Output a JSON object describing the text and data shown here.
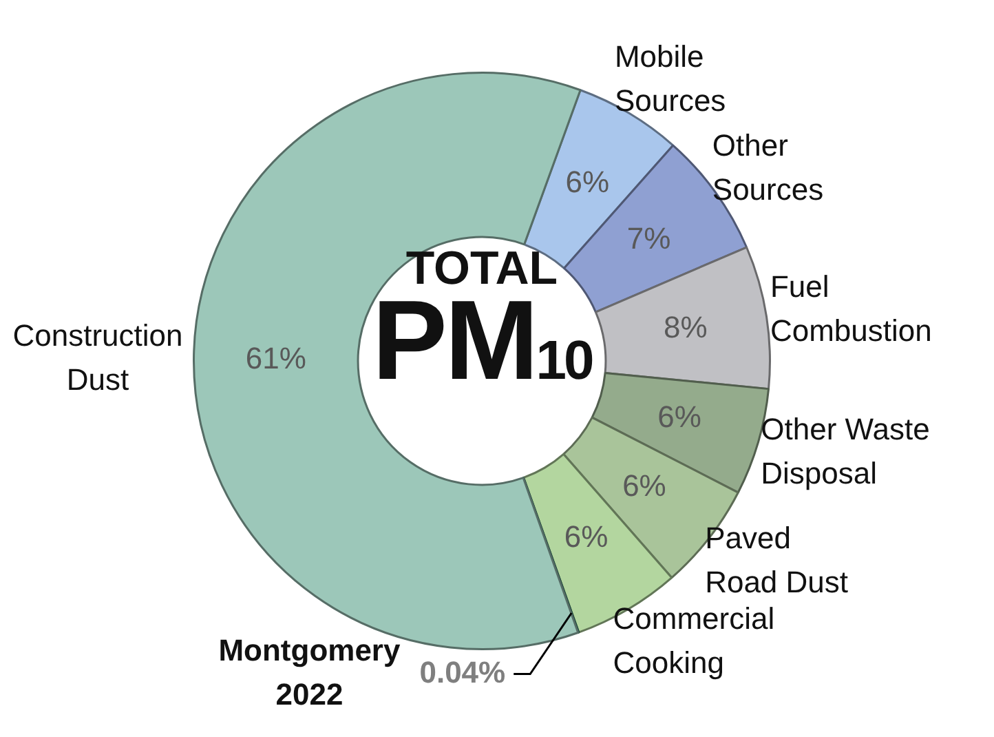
{
  "chart_data": {
    "type": "donut",
    "title": "TOTAL PM$_{10}$",
    "categories": [
      "Mobile Sources",
      "Other Sources",
      "Fuel Combustion",
      "Other Waste Disposal",
      "Paved Road Dust",
      "Commercial Cooking",
      "Montgomery 2022",
      "Construction Dust"
    ],
    "values": [
      6,
      7,
      8,
      6,
      6,
      6,
      0.04,
      61
    ],
    "colors": [
      "#a9c6ec",
      "#8fa0d2",
      "#c0c0c4",
      "#94ab8c",
      "#a9c49a",
      "#b3d69f",
      "#2e7d6a",
      "#9cc7b9"
    ],
    "value_labels": [
      "6%",
      "7%",
      "8%",
      "6%",
      "6%",
      "6%",
      "0.04%",
      "61%"
    ],
    "legend": false
  }
}
